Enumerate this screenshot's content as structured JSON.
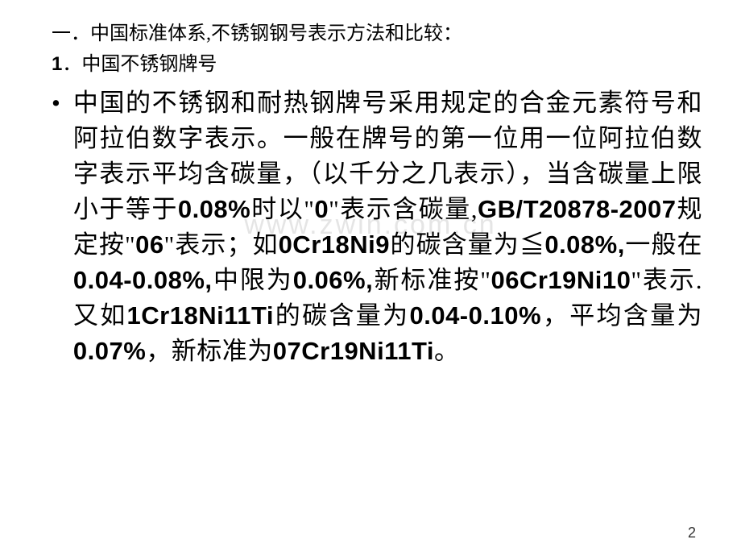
{
  "heading1": "一．中国标准体系,不锈钢钢号表示方法和比较：",
  "heading2_num": "1",
  "heading2_text": "．中国不锈钢牌号",
  "bullet": "•",
  "body_parts": {
    "p1": "中国的不锈钢和耐热钢牌号采用规定的合金元素符号和阿拉伯数字表示。一般在牌号的第一位用一位阿拉伯数字表示平均含碳量，（以千分之几表示），当含碳量上限小于等于",
    "l1": "0.08%",
    "p2": "时以\"",
    "l2": "0",
    "p3": "\"表示含碳量,",
    "l3": "GB/T20878-2007",
    "p4": "规定按\"",
    "l4": "06",
    "p5": "\"表示；如",
    "l5": "0Cr18Ni9",
    "p6": "的碳含量为≦",
    "l6": "0.08%,",
    "p7": "一般在",
    "l7": "0.04-0.08%,",
    "p8": "中限为",
    "l8": "0.06%,",
    "p9": "新标准按\"",
    "l9": "06Cr19Ni10",
    "p10": "\"表示.又如",
    "l10": "1Cr18Ni11Ti",
    "p11": "的碳含量为",
    "l11": "0.04-0.10%",
    "p12": "，平均含量为",
    "l12": "0.07%",
    "p13": "，新标准为",
    "l13": "07Cr19Ni11Ti",
    "p14": "。"
  },
  "page_number": "2",
  "watermark": "www.zwin.com.cn",
  "colors": {
    "background": "#ffffff",
    "text": "#000000",
    "page_num": "#333333",
    "watermark": "rgba(180,180,180,0.35)"
  },
  "fonts": {
    "body_cn": "SimSun",
    "latin_bold": "Arial",
    "heading_size": 24,
    "body_size": 31,
    "pagenum_size": 18,
    "watermark_size": 34
  }
}
